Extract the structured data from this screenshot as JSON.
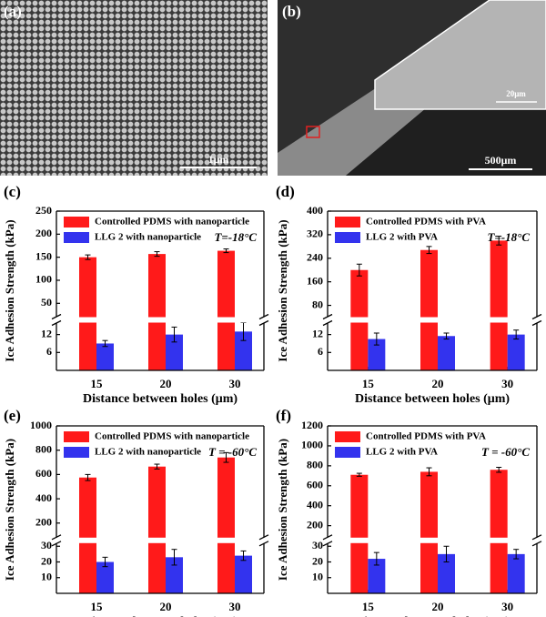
{
  "images": [
    {
      "label": "(a)",
      "scale": "1μm"
    },
    {
      "label": "(b)",
      "scale": "500μm",
      "inset_scale": "20μm"
    }
  ],
  "chart_data": [
    {
      "type": "bar",
      "panel": "(c)",
      "ylabel": "Ice Adhesion Strength (kPa)",
      "xlabel": "Distance between holes (μm)",
      "annotation": "T=-18°C",
      "categories": [
        "15",
        "20",
        "30"
      ],
      "series": [
        {
          "name": "Controlled PDMS with nanoparticle",
          "color": "#ff1a1a",
          "values": [
            150,
            157,
            164
          ],
          "errors": [
            5,
            5,
            4
          ]
        },
        {
          "name": "LLG 2 with nanoparticle",
          "color": "#3333ee",
          "values": [
            9,
            12,
            13
          ],
          "errors": [
            1,
            2.5,
            3
          ]
        }
      ],
      "ylim_lower": [
        0,
        16
      ],
      "yticks_lower": [
        6,
        12
      ],
      "ylim_upper": [
        20,
        250
      ],
      "yticks_upper": [
        50,
        100,
        150,
        200,
        250
      ]
    },
    {
      "type": "bar",
      "panel": "(d)",
      "ylabel": "Ice Adhesion Strength (kPa)",
      "xlabel": "Distance between holes (μm)",
      "annotation": "T=-18°C",
      "categories": [
        "15",
        "20",
        "30"
      ],
      "series": [
        {
          "name": "Controlled PDMS with PVA",
          "color": "#ff1a1a",
          "values": [
            200,
            268,
            300
          ],
          "errors": [
            20,
            12,
            15
          ]
        },
        {
          "name": "LLG 2 with PVA",
          "color": "#3333ee",
          "values": [
            10.5,
            11.5,
            12
          ],
          "errors": [
            2,
            1,
            1.5
          ]
        }
      ],
      "ylim_lower": [
        0,
        16
      ],
      "yticks_lower": [
        6,
        12
      ],
      "ylim_upper": [
        40,
        400
      ],
      "yticks_upper": [
        80,
        160,
        240,
        320,
        400
      ]
    },
    {
      "type": "bar",
      "panel": "(e)",
      "ylabel": "Ice Adhesion Strength (kPa)",
      "xlabel": "Distance between holes (μm)",
      "annotation": "T = -60°C",
      "categories": [
        "15",
        "20",
        "30"
      ],
      "series": [
        {
          "name": "Controlled PDMS with nanoparticle",
          "color": "#ff1a1a",
          "values": [
            575,
            665,
            740
          ],
          "errors": [
            25,
            20,
            40
          ]
        },
        {
          "name": "LLG 2 with nanoparticle",
          "color": "#3333ee",
          "values": [
            20,
            23,
            24
          ],
          "errors": [
            3,
            5,
            3
          ]
        }
      ],
      "ylim_lower": [
        0,
        32
      ],
      "yticks_lower": [
        10,
        20,
        30
      ],
      "ylim_upper": [
        80,
        1000
      ],
      "yticks_upper": [
        200,
        400,
        600,
        800,
        1000
      ]
    },
    {
      "type": "bar",
      "panel": "(f)",
      "ylabel": "Ice Adhesion Strength (kPa)",
      "xlabel": "Distance between holes (μm)",
      "annotation": "T = -60°C",
      "categories": [
        "15",
        "20",
        "30"
      ],
      "series": [
        {
          "name": "Controlled PDMS with PVA",
          "color": "#ff1a1a",
          "values": [
            710,
            740,
            760
          ],
          "errors": [
            15,
            40,
            25
          ]
        },
        {
          "name": "LLG 2 with PVA",
          "color": "#3333ee",
          "values": [
            22,
            25,
            25
          ],
          "errors": [
            4,
            5,
            3
          ]
        }
      ],
      "ylim_lower": [
        0,
        32
      ],
      "yticks_lower": [
        10,
        20,
        30
      ],
      "ylim_upper": [
        80,
        1200
      ],
      "yticks_upper": [
        200,
        400,
        600,
        800,
        1000,
        1200
      ]
    }
  ]
}
